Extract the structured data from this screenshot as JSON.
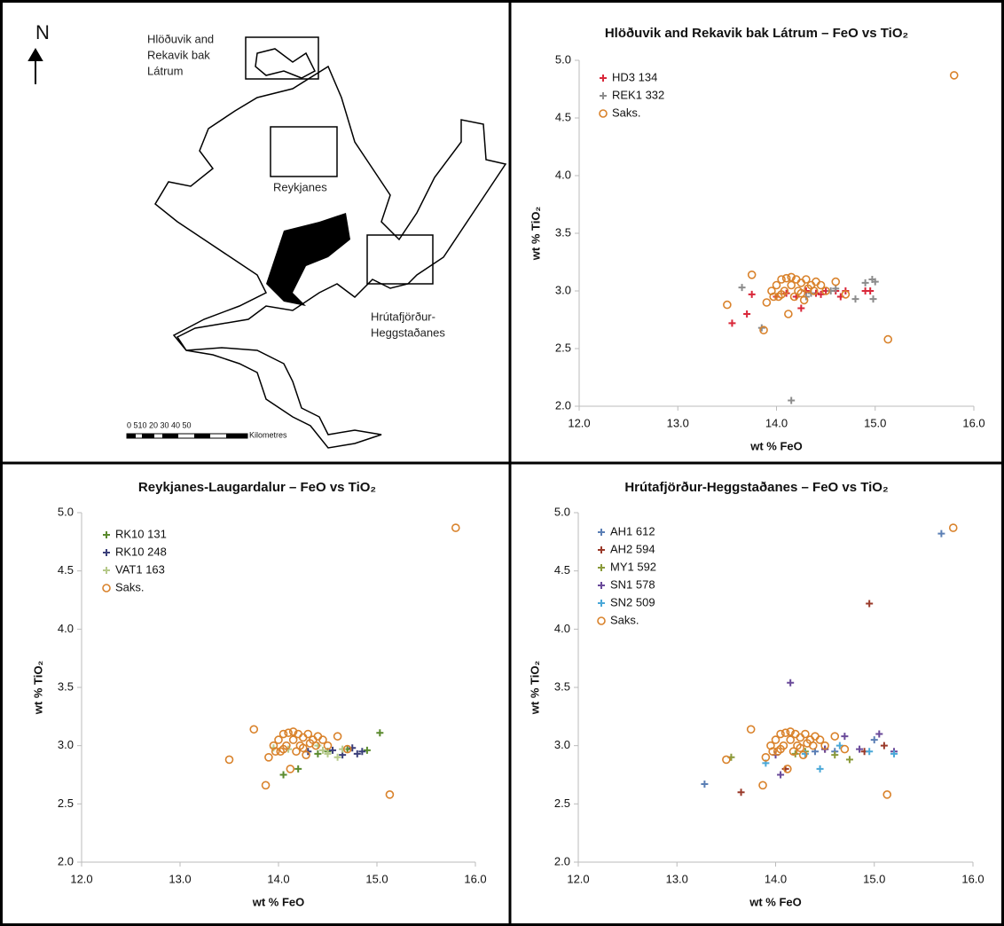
{
  "map": {
    "north": "N",
    "labels": [
      [
        "Hlöðuvik and",
        "Rekavik bak",
        "Látrum"
      ],
      [
        "Reykjanes"
      ],
      [
        "Hrútafjörður-",
        "Heggstaðanes"
      ]
    ],
    "scale_numbers": "0 510 20 30 40 50",
    "scale_unit": "Kilometres"
  },
  "chart_data": [
    {
      "type": "scatter",
      "title": "Hlöðuvik and Rekavik bak Látrum – FeO vs TiO₂",
      "x_label": "wt % FeO",
      "y_label": "wt % TiO₂",
      "xlim": [
        12,
        16
      ],
      "ylim": [
        2,
        5
      ],
      "xticks": [
        {
          "value": 12,
          "label": "12.0"
        },
        {
          "value": 13,
          "label": "13.0"
        },
        {
          "value": 14,
          "label": "14.0"
        },
        {
          "value": 15,
          "label": "15.0"
        },
        {
          "value": 16,
          "label": "16.0"
        }
      ],
      "yticks": [
        {
          "value": 2,
          "label": "2.0"
        },
        2.5,
        {
          "value": 3,
          "label": "3.0"
        },
        3.5,
        {
          "value": 4,
          "label": "4.0"
        },
        4.5,
        {
          "value": 5,
          "label": "5.0"
        }
      ],
      "series": [
        {
          "name": "HD3 134",
          "color": "#d9283a",
          "marker": "plus",
          "x": [
            13.55,
            13.7,
            13.75,
            14.0,
            14.2,
            14.25,
            14.3,
            14.4,
            14.5,
            14.6,
            14.7,
            14.9,
            14.95,
            14.65,
            14.45,
            14.1
          ],
          "values": [
            2.72,
            2.8,
            2.97,
            2.95,
            2.95,
            2.85,
            3.0,
            2.98,
            3.0,
            3.0,
            3.0,
            3.0,
            3.0,
            2.95,
            2.97,
            2.98
          ]
        },
        {
          "name": "REK1 332",
          "color": "#8c8c8c",
          "marker": "plus",
          "x": [
            13.65,
            13.85,
            14.15,
            14.35,
            14.55,
            14.8,
            14.9,
            14.97,
            15.0,
            14.98,
            14.6,
            14.3
          ],
          "values": [
            3.03,
            2.68,
            2.05,
            2.98,
            3.0,
            2.93,
            3.07,
            3.1,
            3.08,
            2.93,
            3.02,
            2.95
          ]
        },
        {
          "name": "Saks.",
          "color": "#d9822b",
          "marker": "circle",
          "x": [
            13.5,
            13.75,
            13.87,
            13.9,
            13.95,
            14.0,
            14.02,
            14.05,
            14.08,
            14.1,
            14.12,
            14.15,
            14.18,
            14.2,
            14.22,
            14.25,
            14.28,
            14.3,
            14.32,
            14.35,
            14.38,
            14.4,
            14.45,
            14.5,
            14.6,
            14.7,
            15.13,
            15.8,
            14.15,
            14.25,
            14.05,
            13.97
          ],
          "values": [
            2.88,
            3.14,
            2.66,
            2.9,
            3.0,
            3.05,
            2.95,
            3.1,
            3.0,
            3.11,
            2.8,
            3.05,
            2.95,
            3.1,
            3.0,
            3.07,
            2.92,
            3.1,
            3.02,
            3.05,
            3.0,
            3.08,
            3.05,
            3.0,
            3.08,
            2.97,
            2.58,
            4.87,
            3.12,
            2.98,
            2.97,
            2.95
          ]
        }
      ]
    },
    {
      "type": "scatter",
      "title": "Reykjanes-Laugardalur – FeO vs TiO₂",
      "x_label": "wt % FeO",
      "y_label": "wt % TiO₂",
      "xlim": [
        12,
        16
      ],
      "ylim": [
        2,
        5
      ],
      "xticks": [
        {
          "value": 12,
          "label": "12.0"
        },
        {
          "value": 13,
          "label": "13.0"
        },
        {
          "value": 14,
          "label": "14.0"
        },
        {
          "value": 15,
          "label": "15.0"
        },
        {
          "value": 16,
          "label": "16.0"
        }
      ],
      "yticks": [
        {
          "value": 2,
          "label": "2.0"
        },
        2.5,
        {
          "value": 3,
          "label": "3.0"
        },
        3.5,
        {
          "value": 4,
          "label": "4.0"
        },
        4.5,
        {
          "value": 5,
          "label": "5.0"
        }
      ],
      "series": [
        {
          "name": "RK10 131",
          "color": "#5a8a2e",
          "marker": "plus",
          "x": [
            14.05,
            14.2,
            14.5,
            14.7,
            14.9,
            15.03,
            14.4
          ],
          "values": [
            2.75,
            2.8,
            2.95,
            2.97,
            2.96,
            3.11,
            2.93
          ]
        },
        {
          "name": "RK10 248",
          "color": "#3b3f7a",
          "marker": "plus",
          "x": [
            14.3,
            14.55,
            14.75,
            14.85,
            14.65,
            14.8
          ],
          "values": [
            2.95,
            2.96,
            2.98,
            2.95,
            2.92,
            2.93
          ]
        },
        {
          "name": "VAT1 163",
          "color": "#b6c98a",
          "marker": "plus",
          "x": [
            13.95,
            14.1,
            14.45,
            14.5,
            14.6,
            14.65,
            14.4
          ],
          "values": [
            2.98,
            2.97,
            2.96,
            2.93,
            2.9,
            2.97,
            3.0
          ]
        },
        {
          "name": "Saks.",
          "color": "#d9822b",
          "marker": "circle",
          "x": [
            13.5,
            13.75,
            13.87,
            13.9,
            13.95,
            14.0,
            14.02,
            14.05,
            14.08,
            14.1,
            14.12,
            14.15,
            14.18,
            14.2,
            14.22,
            14.25,
            14.28,
            14.3,
            14.32,
            14.35,
            14.38,
            14.4,
            14.45,
            14.5,
            14.6,
            14.7,
            15.13,
            15.8,
            14.15,
            14.25,
            14.05,
            13.97
          ],
          "values": [
            2.88,
            3.14,
            2.66,
            2.9,
            3.0,
            3.05,
            2.95,
            3.1,
            3.0,
            3.11,
            2.8,
            3.05,
            2.95,
            3.1,
            3.0,
            3.07,
            2.92,
            3.1,
            3.02,
            3.05,
            3.0,
            3.08,
            3.05,
            3.0,
            3.08,
            2.97,
            2.58,
            4.87,
            3.12,
            2.98,
            2.97,
            2.95
          ]
        }
      ]
    },
    {
      "type": "scatter",
      "title": "Hrútafjörður-Heggstaðanes – FeO vs TiO₂",
      "x_label": "wt % FeO",
      "y_label": "wt % TiO₂",
      "xlim": [
        12,
        16
      ],
      "ylim": [
        2,
        5
      ],
      "xticks": [
        {
          "value": 12,
          "label": "12.0"
        },
        {
          "value": 13,
          "label": "13.0"
        },
        {
          "value": 14,
          "label": "14.0"
        },
        {
          "value": 15,
          "label": "15.0"
        },
        {
          "value": 16,
          "label": "16.0"
        }
      ],
      "yticks": [
        {
          "value": 2,
          "label": "2.0"
        },
        2.5,
        {
          "value": 3,
          "label": "3.0"
        },
        3.5,
        {
          "value": 4,
          "label": "4.0"
        },
        4.5,
        {
          "value": 5,
          "label": "5.0"
        }
      ],
      "series": [
        {
          "name": "AH1 612",
          "color": "#5b7fb5",
          "marker": "plus",
          "x": [
            13.28,
            15.68,
            14.6,
            14.4,
            15.0
          ],
          "values": [
            2.67,
            4.82,
            2.95,
            2.95,
            3.05
          ]
        },
        {
          "name": "AH2 594",
          "color": "#9a3a2a",
          "marker": "plus",
          "x": [
            13.65,
            14.95,
            14.1,
            14.9,
            15.1,
            14.5
          ],
          "values": [
            2.6,
            4.22,
            2.8,
            2.95,
            3.0,
            2.97
          ]
        },
        {
          "name": "MY1 592",
          "color": "#8a9a3a",
          "marker": "plus",
          "x": [
            13.55,
            14.3,
            14.75,
            14.6,
            14.2
          ],
          "values": [
            2.9,
            2.95,
            2.88,
            2.92,
            2.93
          ]
        },
        {
          "name": "SN1 578",
          "color": "#6a4a9a",
          "marker": "plus",
          "x": [
            14.15,
            14.05,
            14.7,
            15.05,
            15.2,
            14.85,
            14.5,
            14.0
          ],
          "values": [
            3.54,
            2.75,
            3.08,
            3.1,
            2.95,
            2.97,
            2.97,
            2.92
          ]
        },
        {
          "name": "SN2 509",
          "color": "#4aa8d8",
          "marker": "plus",
          "x": [
            14.45,
            14.95,
            15.2,
            14.65,
            14.3,
            13.9
          ],
          "values": [
            2.8,
            2.95,
            2.93,
            3.0,
            2.93,
            2.85
          ]
        },
        {
          "name": "Saks.",
          "color": "#d9822b",
          "marker": "circle",
          "x": [
            13.5,
            13.75,
            13.87,
            13.9,
            13.95,
            14.0,
            14.02,
            14.05,
            14.08,
            14.1,
            14.12,
            14.15,
            14.18,
            14.2,
            14.22,
            14.25,
            14.28,
            14.3,
            14.32,
            14.35,
            14.38,
            14.4,
            14.45,
            14.5,
            14.6,
            14.7,
            15.13,
            15.8,
            14.15,
            14.25,
            14.05,
            13.97
          ],
          "values": [
            2.88,
            3.14,
            2.66,
            2.9,
            3.0,
            3.05,
            2.95,
            3.1,
            3.0,
            3.11,
            2.8,
            3.05,
            2.95,
            3.1,
            3.0,
            3.07,
            2.92,
            3.1,
            3.02,
            3.05,
            3.0,
            3.08,
            3.05,
            3.0,
            3.08,
            2.97,
            2.58,
            4.87,
            3.12,
            2.98,
            2.97,
            2.95
          ]
        }
      ]
    }
  ]
}
